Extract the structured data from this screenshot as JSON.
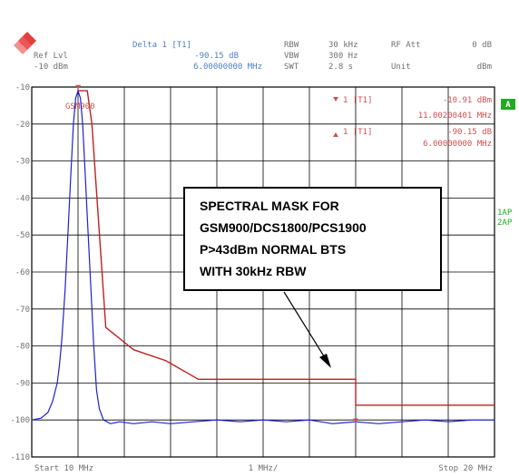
{
  "header": {
    "ref_lvl_label": "Ref Lvl",
    "ref_lvl_value": "-10 dBm",
    "delta_label": "Delta 1 [T1]",
    "delta_level": "-90.15 dB",
    "delta_freq": "6.00000000 MHz",
    "rbw_label": "RBW",
    "rbw_value": "30 kHz",
    "vbw_label": "VBW",
    "vbw_value": "300 Hz",
    "swt_label": "SWT",
    "swt_value": "2.8 s",
    "rf_att_label": "RF Att",
    "rf_att_value": "0 dB",
    "unit_label": "Unit",
    "unit_value": "dBm"
  },
  "markers": {
    "m1_label": "1 [T1]",
    "m1_level": "-10.91 dBm",
    "m1_freq": "11.00200401 MHz",
    "d1_label": "1 [T1]",
    "d1_level": "-90.15 dB",
    "d1_freq": "6.00000000 MHz"
  },
  "side_labels": {
    "a_box": "A",
    "ap1": "1AP",
    "ap2": "2AP"
  },
  "footer": {
    "start": "Start 10 MHz",
    "div": "1 MHz/",
    "stop": "Stop 20 MHz"
  },
  "limit_line_label": "GSM900",
  "annotation": {
    "lines": [
      "SPECTRAL MASK FOR",
      "GSM900/DCS1800/PCS1900",
      "P>43dBm NORMAL BTS",
      "WITH 30kHz RBW"
    ]
  },
  "colors": {
    "trace": "#2020d0",
    "limit": "#c02020",
    "header_blue": "#5080c0",
    "marker_red": "#d05050",
    "grid": "#000000",
    "green": "#22aa22"
  },
  "chart_data": {
    "type": "line",
    "xlabel": "",
    "ylabel": "",
    "xlim": [
      10,
      20
    ],
    "ylim": [
      -110,
      -10
    ],
    "y_ticks": [
      -10,
      -20,
      -30,
      -40,
      -50,
      -60,
      -70,
      -80,
      -90,
      -100,
      -110
    ],
    "y_tick_labels": [
      "-10",
      "-20",
      "-30",
      "-40",
      "-50",
      "-60",
      "-70",
      "-80",
      "-90",
      "-100",
      "-110"
    ],
    "grid": true,
    "series": [
      {
        "name": "trace",
        "x": [
          10.0,
          10.2,
          10.35,
          10.45,
          10.55,
          10.6,
          10.65,
          10.72,
          10.78,
          10.84,
          10.9,
          10.95,
          11.0,
          11.05,
          11.1,
          11.16,
          11.22,
          11.28,
          11.34,
          11.4,
          11.46,
          11.55,
          11.7,
          11.9,
          12.2,
          12.6,
          13.0,
          13.5,
          14.0,
          14.5,
          15.0,
          15.5,
          16.0,
          16.5,
          17.0,
          17.5,
          18.0,
          18.5,
          19.0,
          19.5,
          20.0
        ],
        "y": [
          -100,
          -99.5,
          -98,
          -95,
          -90,
          -85,
          -78,
          -65,
          -50,
          -35,
          -20,
          -13,
          -11,
          -13,
          -20,
          -35,
          -50,
          -65,
          -80,
          -92,
          -97,
          -100,
          -101,
          -100.5,
          -101,
          -100.5,
          -101,
          -100.5,
          -100,
          -100.5,
          -100,
          -100.5,
          -100,
          -101,
          -100.5,
          -101,
          -100.5,
          -100,
          -100.5,
          -100,
          -100
        ]
      },
      {
        "name": "GSM900",
        "x": [
          11.0,
          11.2,
          11.3,
          11.6,
          12.2,
          12.2,
          12.9,
          12.9,
          13.6,
          13.6,
          17.0,
          17.0,
          20.0
        ],
        "y": [
          -11,
          -11,
          -20,
          -75,
          -81,
          -81,
          -84,
          -84,
          -89,
          -89,
          -89,
          -96,
          -96
        ]
      }
    ],
    "markers": [
      {
        "x": 11.002,
        "y": -10.91
      },
      {
        "x": 17.0,
        "y": -101.06
      }
    ]
  }
}
